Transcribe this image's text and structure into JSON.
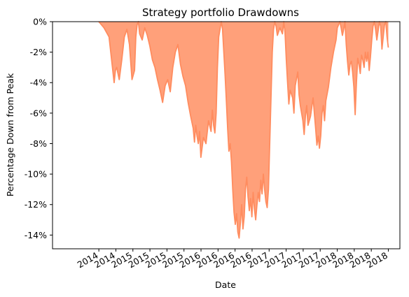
{
  "chart_data": {
    "type": "area",
    "title": "Strategy portfolio Drawdowns",
    "xlabel": "Date",
    "ylabel": "Percentage Down from Peak",
    "ylim": [
      -14.9,
      0
    ],
    "y_ticks": [
      0,
      -2,
      -4,
      -6,
      -8,
      -10,
      -12,
      -14
    ],
    "y_tick_labels": [
      "0%",
      "-2%",
      "-4%",
      "-6%",
      "-8%",
      "-10%",
      "-12%",
      "-14%"
    ],
    "x_tick_labels": [
      "2014",
      "2014",
      "2015",
      "2015",
      "2015",
      "2015",
      "2016",
      "2016",
      "2016",
      "2016",
      "2017",
      "2017",
      "2017",
      "2017",
      "2018",
      "2018",
      "2018",
      "2018"
    ],
    "grid": false,
    "fill_color": "#ffa07a",
    "line_color": "#ff8c5f",
    "series": [
      {
        "values": [
          [
            0.0,
            0.0
          ],
          [
            0.02,
            -0.4
          ],
          [
            0.04,
            -1.0
          ],
          [
            0.05,
            -2.5
          ],
          [
            0.06,
            -4.0
          ],
          [
            0.065,
            -3.2
          ],
          [
            0.07,
            -3.0
          ],
          [
            0.08,
            -3.8
          ],
          [
            0.09,
            -2.5
          ],
          [
            0.1,
            -1.0
          ],
          [
            0.11,
            -0.5
          ],
          [
            0.12,
            -1.5
          ],
          [
            0.13,
            -3.8
          ],
          [
            0.14,
            -3.2
          ],
          [
            0.145,
            -1.0
          ],
          [
            0.15,
            -0.2
          ],
          [
            0.155,
            0.0
          ],
          [
            0.16,
            -0.8
          ],
          [
            0.17,
            -1.2
          ],
          [
            0.18,
            -0.4
          ],
          [
            0.19,
            -0.9
          ],
          [
            0.2,
            -1.6
          ],
          [
            0.21,
            -2.5
          ],
          [
            0.22,
            -3.0
          ],
          [
            0.23,
            -3.8
          ],
          [
            0.24,
            -4.5
          ],
          [
            0.25,
            -5.3
          ],
          [
            0.26,
            -4.2
          ],
          [
            0.27,
            -3.8
          ],
          [
            0.28,
            -4.6
          ],
          [
            0.29,
            -3.0
          ],
          [
            0.3,
            -2.0
          ],
          [
            0.31,
            -1.5
          ],
          [
            0.32,
            -2.8
          ],
          [
            0.33,
            -3.6
          ],
          [
            0.34,
            -4.2
          ],
          [
            0.35,
            -5.3
          ],
          [
            0.36,
            -6.2
          ],
          [
            0.37,
            -7.0
          ],
          [
            0.375,
            -7.9
          ],
          [
            0.38,
            -6.8
          ],
          [
            0.385,
            -7.5
          ],
          [
            0.39,
            -8.0
          ],
          [
            0.395,
            -7.2
          ],
          [
            0.4,
            -8.9
          ],
          [
            0.41,
            -7.6
          ],
          [
            0.42,
            -8.0
          ],
          [
            0.43,
            -6.5
          ],
          [
            0.44,
            -7.2
          ],
          [
            0.445,
            -5.8
          ],
          [
            0.45,
            -6.8
          ],
          [
            0.455,
            -7.3
          ],
          [
            0.46,
            -6.0
          ],
          [
            0.465,
            -3.0
          ],
          [
            0.47,
            -1.0
          ],
          [
            0.48,
            0.0
          ],
          [
            0.485,
            -0.5
          ],
          [
            0.49,
            -2.0
          ],
          [
            0.495,
            -3.5
          ],
          [
            0.5,
            -5.2
          ],
          [
            0.505,
            -7.0
          ],
          [
            0.51,
            -8.5
          ],
          [
            0.515,
            -8.0
          ],
          [
            0.52,
            -9.2
          ],
          [
            0.525,
            -11.0
          ],
          [
            0.53,
            -12.5
          ],
          [
            0.535,
            -13.3
          ],
          [
            0.54,
            -12.6
          ],
          [
            0.545,
            -13.8
          ],
          [
            0.55,
            -14.2
          ],
          [
            0.555,
            -13.2
          ],
          [
            0.56,
            -12.0
          ],
          [
            0.565,
            -13.6
          ],
          [
            0.57,
            -12.8
          ],
          [
            0.575,
            -11.0
          ],
          [
            0.58,
            -10.2
          ],
          [
            0.585,
            -11.5
          ],
          [
            0.59,
            -12.4
          ],
          [
            0.595,
            -11.6
          ],
          [
            0.6,
            -12.8
          ],
          [
            0.605,
            -11.2
          ],
          [
            0.61,
            -12.3
          ],
          [
            0.615,
            -13.0
          ],
          [
            0.62,
            -12.0
          ],
          [
            0.625,
            -11.2
          ],
          [
            0.63,
            -11.8
          ],
          [
            0.635,
            -10.4
          ],
          [
            0.64,
            -11.3
          ],
          [
            0.645,
            -10.0
          ],
          [
            0.65,
            -11.0
          ],
          [
            0.655,
            -11.8
          ],
          [
            0.66,
            -12.2
          ],
          [
            0.665,
            -11.0
          ],
          [
            0.67,
            -8.0
          ],
          [
            0.675,
            -5.0
          ],
          [
            0.68,
            -2.0
          ],
          [
            0.685,
            -0.5
          ],
          [
            0.69,
            0.0
          ],
          [
            0.695,
            -0.3
          ],
          [
            0.7,
            -0.9
          ],
          [
            0.71,
            -0.4
          ],
          [
            0.72,
            -0.8
          ],
          [
            0.725,
            0.0
          ],
          [
            0.73,
            -0.7
          ],
          [
            0.735,
            -2.5
          ],
          [
            0.74,
            -4.0
          ],
          [
            0.745,
            -5.4
          ],
          [
            0.75,
            -4.5
          ],
          [
            0.76,
            -5.0
          ],
          [
            0.765,
            -6.0
          ],
          [
            0.77,
            -4.2
          ],
          [
            0.78,
            -3.3
          ],
          [
            0.785,
            -4.8
          ],
          [
            0.79,
            -5.5
          ],
          [
            0.8,
            -6.5
          ],
          [
            0.805,
            -7.4
          ],
          [
            0.81,
            -6.2
          ],
          [
            0.815,
            -5.5
          ],
          [
            0.82,
            -6.8
          ],
          [
            0.83,
            -6.2
          ],
          [
            0.84,
            -5.0
          ],
          [
            0.845,
            -6.0
          ],
          [
            0.85,
            -7.0
          ],
          [
            0.855,
            -8.1
          ],
          [
            0.86,
            -7.5
          ],
          [
            0.865,
            -8.3
          ],
          [
            0.87,
            -7.5
          ],
          [
            0.875,
            -6.0
          ],
          [
            0.88,
            -5.5
          ],
          [
            0.885,
            -6.5
          ],
          [
            0.89,
            -5.2
          ],
          [
            0.9,
            -4.3
          ],
          [
            0.91,
            -3.0
          ],
          [
            0.92,
            -2.0
          ],
          [
            0.93,
            -1.2
          ],
          [
            0.935,
            -0.4
          ],
          [
            0.94,
            -0.2
          ],
          [
            0.945,
            0.0
          ],
          [
            0.95,
            -0.4
          ],
          [
            0.955,
            -0.9
          ],
          [
            0.96,
            -0.5
          ],
          [
            0.965,
            0.0
          ],
          [
            0.97,
            -1.5
          ],
          [
            0.975,
            -2.6
          ],
          [
            0.98,
            -3.5
          ],
          [
            0.985,
            -2.8
          ],
          [
            0.99,
            -2.6
          ],
          [
            0.995,
            -3.3
          ],
          [
            1.0,
            -4.3
          ],
          [
            1.005,
            -6.1
          ],
          [
            1.01,
            -4.0
          ],
          [
            1.015,
            -2.4
          ],
          [
            1.02,
            -2.8
          ],
          [
            1.025,
            -3.4
          ],
          [
            1.03,
            -2.2
          ],
          [
            1.035,
            -2.5
          ],
          [
            1.04,
            -3.0
          ],
          [
            1.045,
            -2.0
          ],
          [
            1.05,
            -2.6
          ],
          [
            1.055,
            -2.0
          ],
          [
            1.06,
            -3.2
          ],
          [
            1.065,
            -2.3
          ],
          [
            1.07,
            -1.2
          ],
          [
            1.075,
            -0.3
          ],
          [
            1.08,
            0.0
          ],
          [
            1.085,
            -0.5
          ],
          [
            1.09,
            -1.2
          ],
          [
            1.095,
            -0.6
          ],
          [
            1.1,
            0.0
          ],
          [
            1.105,
            -0.3
          ],
          [
            1.11,
            -1.8
          ],
          [
            1.115,
            -1.0
          ],
          [
            1.12,
            -0.2
          ],
          [
            1.125,
            0.0
          ],
          [
            1.13,
            -1.0
          ],
          [
            1.135,
            -1.7
          ]
        ]
      }
    ]
  }
}
